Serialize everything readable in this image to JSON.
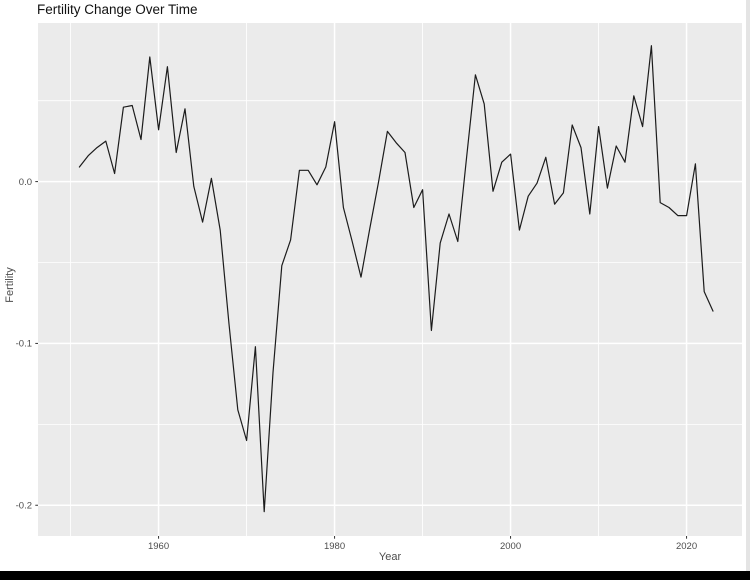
{
  "colors": {
    "panel_bg": "#ebebeb",
    "grid": "#ffffff",
    "line": "#1c1c1c",
    "axis_text": "#4d4d4d",
    "tick_mark": "#333333",
    "title_text": "#111111",
    "bottom_bar": "#000000"
  },
  "chart_data": {
    "type": "line",
    "title": "Fertility Change Over Time",
    "xlabel": "Year",
    "ylabel": "Fertility",
    "grid": true,
    "legend": false,
    "style": "ggplot2-gray-panel",
    "xlim": [
      1946.3,
      2026.3
    ],
    "ylim": [
      -0.219,
      0.098
    ],
    "x_ticks": {
      "major": [
        1960,
        1980,
        2000,
        2020
      ],
      "minor": [
        1950,
        1970,
        1990,
        2010
      ],
      "labels": [
        "1960",
        "1980",
        "2000",
        "2020"
      ]
    },
    "y_ticks": {
      "major": [
        0.0,
        -0.1,
        -0.2
      ],
      "minor": [
        0.05,
        -0.05,
        -0.15
      ],
      "labels": [
        "0.0",
        "-0.1",
        "-0.2"
      ]
    },
    "x": [
      1951,
      1952,
      1953,
      1954,
      1955,
      1956,
      1957,
      1958,
      1959,
      1960,
      1961,
      1962,
      1963,
      1964,
      1965,
      1966,
      1967,
      1968,
      1969,
      1970,
      1971,
      1972,
      1973,
      1974,
      1975,
      1976,
      1977,
      1978,
      1979,
      1980,
      1981,
      1982,
      1983,
      1984,
      1985,
      1986,
      1987,
      1988,
      1989,
      1990,
      1991,
      1992,
      1993,
      1994,
      1995,
      1996,
      1997,
      1998,
      1999,
      2000,
      2001,
      2002,
      2003,
      2004,
      2005,
      2006,
      2007,
      2008,
      2009,
      2010,
      2011,
      2012,
      2013,
      2014,
      2015,
      2016,
      2017,
      2018,
      2019,
      2020,
      2021,
      2022,
      2023
    ],
    "y": [
      0.009,
      0.016,
      0.021,
      0.025,
      0.005,
      0.046,
      0.047,
      0.026,
      0.077,
      0.032,
      0.071,
      0.018,
      0.045,
      -0.003,
      -0.025,
      0.002,
      -0.03,
      -0.088,
      -0.141,
      -0.16,
      -0.102,
      -0.204,
      -0.118,
      -0.052,
      -0.036,
      0.007,
      0.007,
      -0.002,
      0.009,
      0.037,
      -0.016,
      -0.037,
      -0.059,
      -0.029,
      0.0,
      0.031,
      0.024,
      0.018,
      -0.016,
      -0.005,
      -0.092,
      -0.038,
      -0.02,
      -0.037,
      0.015,
      0.066,
      0.048,
      -0.006,
      0.012,
      0.017,
      -0.03,
      -0.009,
      -0.001,
      0.015,
      -0.014,
      -0.007,
      0.035,
      0.021,
      -0.02,
      0.034,
      -0.004,
      0.022,
      0.012,
      0.053,
      0.034,
      0.084,
      -0.013,
      -0.016,
      -0.021,
      -0.021,
      0.011,
      -0.068,
      -0.08
    ]
  }
}
